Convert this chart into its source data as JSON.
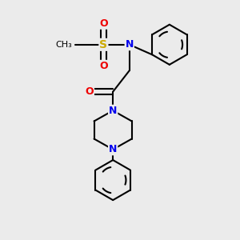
{
  "background_color": "#ebebeb",
  "atom_colors": {
    "C": "#000000",
    "N": "#0000ee",
    "O": "#ee0000",
    "S": "#ccaa00"
  },
  "bond_color": "#000000",
  "bond_width": 1.5,
  "figsize": [
    3.0,
    3.0
  ],
  "dpi": 100,
  "xlim": [
    0,
    10
  ],
  "ylim": [
    0,
    10
  ]
}
